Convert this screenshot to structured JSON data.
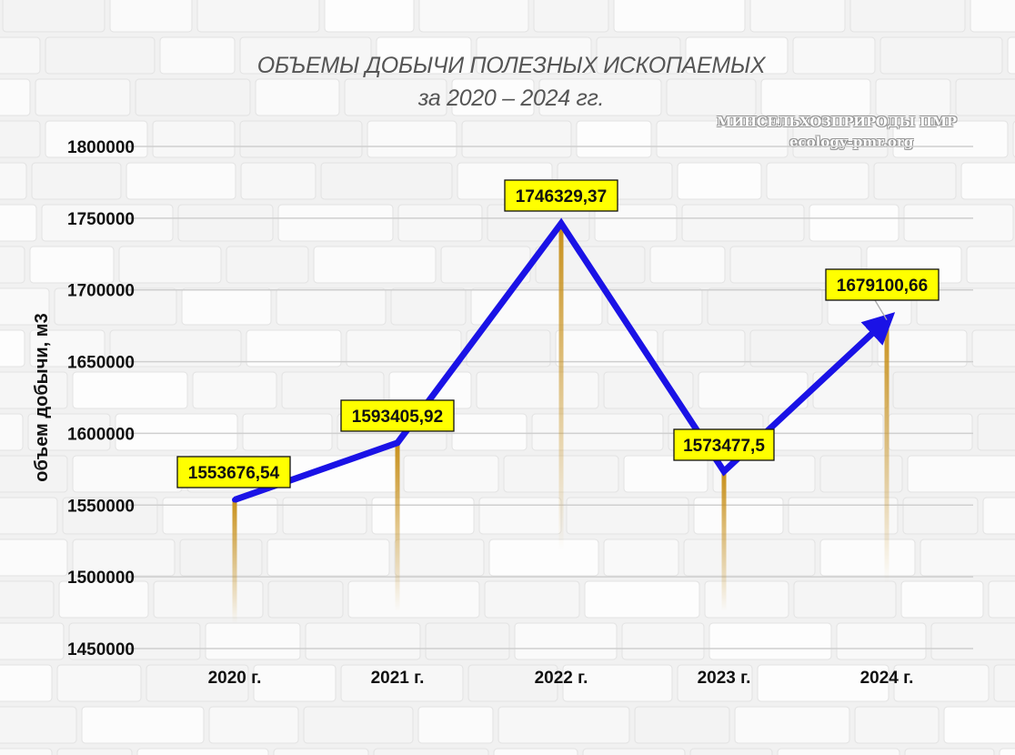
{
  "title_line1": "ОБЪЕМЫ ДОБЫЧИ ПОЛЕЗНЫХ ИСКОПАЕМЫХ",
  "title_line2": "за 2020 – 2024 гг.",
  "watermark": {
    "line1": "МИНСЕЛЬХОЗПРИРОДЫ ПМР",
    "line2": "ecology-pmr.org"
  },
  "colors": {
    "line": "#1a12e6",
    "label_bg": "#ffff00",
    "drop_line": "#c8901a",
    "gridline": "#cfcfcf"
  },
  "chart_data": {
    "type": "line",
    "ylabel": "объем добычи, м3",
    "xlabel": "",
    "ylim": [
      1450000,
      1800000
    ],
    "yticks": [
      "1450000",
      "1500000",
      "1550000",
      "1600000",
      "1650000",
      "1700000",
      "1750000",
      "1800000"
    ],
    "categories": [
      "2020 г.",
      "2021 г.",
      "2022 г.",
      "2023 г.",
      "2024 г."
    ],
    "values": [
      1553676.54,
      1593405.92,
      1746329.37,
      1573477.5,
      1679100.66
    ],
    "data_labels": [
      "1553676,54",
      "1593405,92",
      "1746329,37",
      "1573477,5",
      "1679100,66"
    ],
    "grid": true,
    "legend": "none",
    "last_point_arrow": true
  }
}
